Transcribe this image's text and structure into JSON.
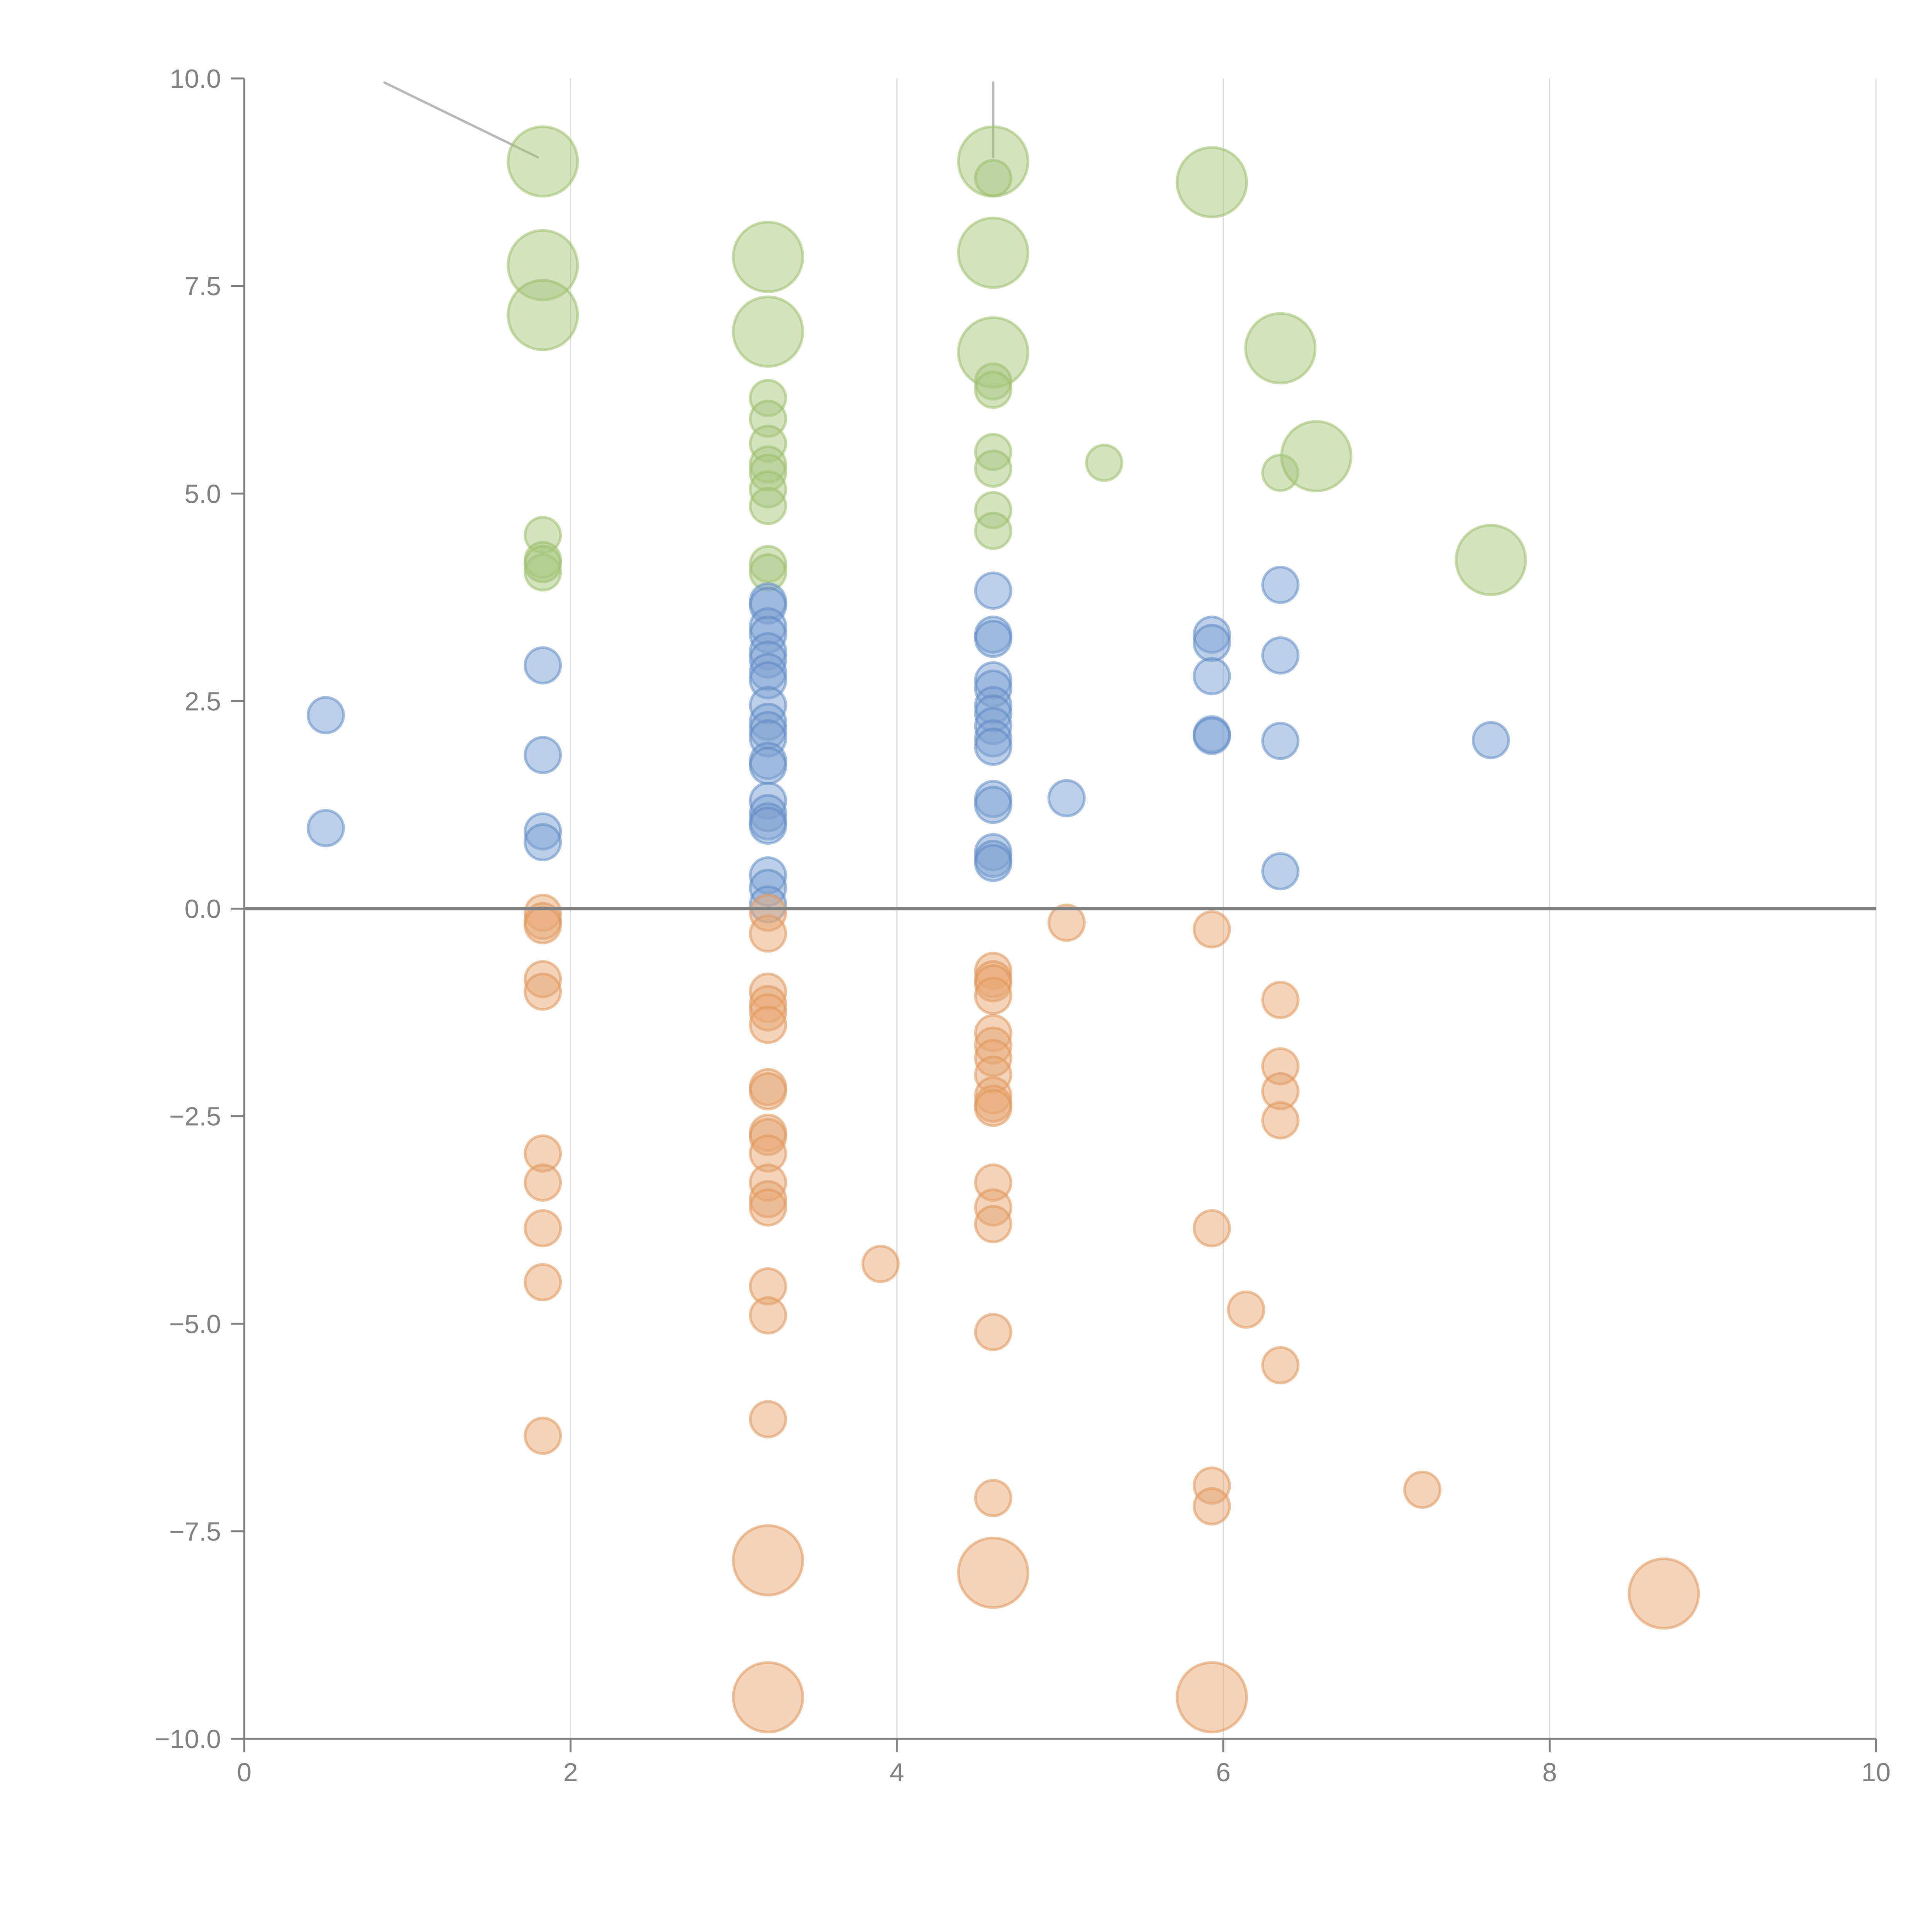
{
  "chart_data": {
    "type": "scatter",
    "subtype": "bubble",
    "title": "",
    "xlabel": "",
    "ylabel": "",
    "xlim": [
      0,
      10
    ],
    "ylim": [
      -10,
      10
    ],
    "x_ticks": [
      "0",
      "2",
      "4",
      "6",
      "8",
      "10"
    ],
    "y_ticks": [
      "10.0",
      "7.5",
      "5.0",
      "2.5",
      "0.0",
      "−2.5",
      "−5.0",
      "−7.5",
      "−10.0"
    ],
    "x_tick_values": [
      0,
      2,
      4,
      6,
      8,
      10
    ],
    "y_tick_values": [
      10,
      7.5,
      5,
      2.5,
      0,
      -2.5,
      -5,
      -7.5,
      -10
    ],
    "grid": "vertical",
    "zero_line": true,
    "legend": "none",
    "colors": {
      "positive_high": {
        "fill": "#a9c77f",
        "stroke": "#9bbf6a"
      },
      "positive_low": {
        "fill": "#7ea1d2",
        "stroke": "#5f8ac6"
      },
      "negative": {
        "fill": "#e8a874",
        "stroke": "#e0955a"
      }
    },
    "series": [
      {
        "name": "green",
        "color_key": "positive_high",
        "points": [
          {
            "x": 1.83,
            "y": 9.0,
            "size": 2
          },
          {
            "x": 1.83,
            "y": 7.75,
            "size": 2
          },
          {
            "x": 1.83,
            "y": 7.15,
            "size": 2
          },
          {
            "x": 1.83,
            "y": 4.5,
            "size": 1
          },
          {
            "x": 1.83,
            "y": 4.2,
            "size": 1
          },
          {
            "x": 1.83,
            "y": 4.05,
            "size": 1
          },
          {
            "x": 1.83,
            "y": 4.15,
            "size": 1
          },
          {
            "x": 3.21,
            "y": 7.85,
            "size": 2
          },
          {
            "x": 3.21,
            "y": 6.95,
            "size": 2
          },
          {
            "x": 3.21,
            "y": 6.15,
            "size": 1
          },
          {
            "x": 3.21,
            "y": 5.9,
            "size": 1
          },
          {
            "x": 3.21,
            "y": 5.6,
            "size": 1
          },
          {
            "x": 3.21,
            "y": 5.35,
            "size": 1
          },
          {
            "x": 3.21,
            "y": 5.25,
            "size": 1
          },
          {
            "x": 3.21,
            "y": 5.05,
            "size": 1
          },
          {
            "x": 3.21,
            "y": 4.85,
            "size": 1
          },
          {
            "x": 3.21,
            "y": 4.15,
            "size": 1
          },
          {
            "x": 3.21,
            "y": 4.05,
            "size": 1
          },
          {
            "x": 4.59,
            "y": 9.0,
            "size": 2
          },
          {
            "x": 4.59,
            "y": 8.8,
            "size": 1
          },
          {
            "x": 4.59,
            "y": 7.9,
            "size": 2
          },
          {
            "x": 4.59,
            "y": 6.7,
            "size": 2
          },
          {
            "x": 4.59,
            "y": 6.35,
            "size": 1
          },
          {
            "x": 4.59,
            "y": 6.25,
            "size": 1
          },
          {
            "x": 4.59,
            "y": 5.5,
            "size": 1
          },
          {
            "x": 4.59,
            "y": 5.3,
            "size": 1
          },
          {
            "x": 4.59,
            "y": 4.8,
            "size": 1
          },
          {
            "x": 4.59,
            "y": 4.55,
            "size": 1
          },
          {
            "x": 5.27,
            "y": 5.37,
            "size": 1
          },
          {
            "x": 5.93,
            "y": 8.75,
            "size": 2
          },
          {
            "x": 6.35,
            "y": 6.75,
            "size": 2
          },
          {
            "x": 6.35,
            "y": 5.25,
            "size": 1
          },
          {
            "x": 6.57,
            "y": 5.45,
            "size": 2
          },
          {
            "x": 7.64,
            "y": 4.2,
            "size": 2
          }
        ]
      },
      {
        "name": "blue",
        "color_key": "positive_low",
        "points": [
          {
            "x": 0.5,
            "y": 2.33,
            "size": 1
          },
          {
            "x": 0.5,
            "y": 0.97,
            "size": 1
          },
          {
            "x": 1.83,
            "y": 2.93,
            "size": 1
          },
          {
            "x": 1.83,
            "y": 1.85,
            "size": 1
          },
          {
            "x": 1.83,
            "y": 0.93,
            "size": 1
          },
          {
            "x": 1.83,
            "y": 0.8,
            "size": 1
          },
          {
            "x": 3.21,
            "y": 3.7,
            "size": 1
          },
          {
            "x": 3.21,
            "y": 3.65,
            "size": 1
          },
          {
            "x": 3.21,
            "y": 3.4,
            "size": 1
          },
          {
            "x": 3.21,
            "y": 3.3,
            "size": 1
          },
          {
            "x": 3.21,
            "y": 3.1,
            "size": 1
          },
          {
            "x": 3.21,
            "y": 3.0,
            "size": 1
          },
          {
            "x": 3.21,
            "y": 2.85,
            "size": 1
          },
          {
            "x": 3.21,
            "y": 2.75,
            "size": 1
          },
          {
            "x": 3.21,
            "y": 2.45,
            "size": 1
          },
          {
            "x": 3.21,
            "y": 2.25,
            "size": 1
          },
          {
            "x": 3.21,
            "y": 2.15,
            "size": 1
          },
          {
            "x": 3.21,
            "y": 2.05,
            "size": 1
          },
          {
            "x": 3.21,
            "y": 1.78,
            "size": 1
          },
          {
            "x": 3.21,
            "y": 1.72,
            "size": 1
          },
          {
            "x": 3.21,
            "y": 1.3,
            "size": 1
          },
          {
            "x": 3.21,
            "y": 1.15,
            "size": 1
          },
          {
            "x": 3.21,
            "y": 1.05,
            "size": 1
          },
          {
            "x": 3.21,
            "y": 1.0,
            "size": 1
          },
          {
            "x": 3.21,
            "y": 0.4,
            "size": 1
          },
          {
            "x": 3.21,
            "y": 0.25,
            "size": 1
          },
          {
            "x": 3.21,
            "y": 0.05,
            "size": 1
          },
          {
            "x": 4.59,
            "y": 3.83,
            "size": 1
          },
          {
            "x": 4.59,
            "y": 3.3,
            "size": 1
          },
          {
            "x": 4.59,
            "y": 3.25,
            "size": 1
          },
          {
            "x": 4.59,
            "y": 2.75,
            "size": 1
          },
          {
            "x": 4.59,
            "y": 2.65,
            "size": 1
          },
          {
            "x": 4.59,
            "y": 2.45,
            "size": 1
          },
          {
            "x": 4.59,
            "y": 2.35,
            "size": 1
          },
          {
            "x": 4.59,
            "y": 2.2,
            "size": 1
          },
          {
            "x": 4.59,
            "y": 2.05,
            "size": 1
          },
          {
            "x": 4.59,
            "y": 1.95,
            "size": 1
          },
          {
            "x": 4.59,
            "y": 1.32,
            "size": 1
          },
          {
            "x": 4.59,
            "y": 1.25,
            "size": 1
          },
          {
            "x": 4.59,
            "y": 0.68,
            "size": 1
          },
          {
            "x": 4.59,
            "y": 0.6,
            "size": 1
          },
          {
            "x": 4.59,
            "y": 0.55,
            "size": 1
          },
          {
            "x": 5.04,
            "y": 1.33,
            "size": 1
          },
          {
            "x": 5.93,
            "y": 3.3,
            "size": 1
          },
          {
            "x": 5.93,
            "y": 3.2,
            "size": 1
          },
          {
            "x": 5.93,
            "y": 2.8,
            "size": 1
          },
          {
            "x": 5.93,
            "y": 2.1,
            "size": 1
          },
          {
            "x": 5.93,
            "y": 2.08,
            "size": 1
          },
          {
            "x": 6.35,
            "y": 3.9,
            "size": 1
          },
          {
            "x": 6.35,
            "y": 3.05,
            "size": 1
          },
          {
            "x": 6.35,
            "y": 2.02,
            "size": 1
          },
          {
            "x": 6.35,
            "y": 0.45,
            "size": 1
          },
          {
            "x": 7.64,
            "y": 2.03,
            "size": 1
          }
        ]
      },
      {
        "name": "orange",
        "color_key": "negative",
        "points": [
          {
            "x": 1.83,
            "y": -0.05,
            "size": 1
          },
          {
            "x": 1.83,
            "y": -0.15,
            "size": 1
          },
          {
            "x": 1.83,
            "y": -0.2,
            "size": 1
          },
          {
            "x": 1.83,
            "y": -0.85,
            "size": 1
          },
          {
            "x": 1.83,
            "y": -1.0,
            "size": 1
          },
          {
            "x": 1.83,
            "y": -2.95,
            "size": 1
          },
          {
            "x": 1.83,
            "y": -3.3,
            "size": 1
          },
          {
            "x": 1.83,
            "y": -3.85,
            "size": 1
          },
          {
            "x": 1.83,
            "y": -4.5,
            "size": 1
          },
          {
            "x": 1.83,
            "y": -6.35,
            "size": 1
          },
          {
            "x": 3.21,
            "y": -0.05,
            "size": 1
          },
          {
            "x": 3.21,
            "y": -0.3,
            "size": 1
          },
          {
            "x": 3.21,
            "y": -1.0,
            "size": 1
          },
          {
            "x": 3.21,
            "y": -1.15,
            "size": 1
          },
          {
            "x": 3.21,
            "y": -1.25,
            "size": 1
          },
          {
            "x": 3.21,
            "y": -1.4,
            "size": 1
          },
          {
            "x": 3.21,
            "y": -2.15,
            "size": 1
          },
          {
            "x": 3.21,
            "y": -2.2,
            "size": 1
          },
          {
            "x": 3.21,
            "y": -2.7,
            "size": 1
          },
          {
            "x": 3.21,
            "y": -2.75,
            "size": 1
          },
          {
            "x": 3.21,
            "y": -2.95,
            "size": 1
          },
          {
            "x": 3.21,
            "y": -3.3,
            "size": 1
          },
          {
            "x": 3.21,
            "y": -3.5,
            "size": 1
          },
          {
            "x": 3.21,
            "y": -3.6,
            "size": 1
          },
          {
            "x": 3.21,
            "y": -4.55,
            "size": 1
          },
          {
            "x": 3.21,
            "y": -4.9,
            "size": 1
          },
          {
            "x": 3.21,
            "y": -6.15,
            "size": 1
          },
          {
            "x": 3.21,
            "y": -7.85,
            "size": 2
          },
          {
            "x": 3.21,
            "y": -9.5,
            "size": 2
          },
          {
            "x": 3.9,
            "y": -4.28,
            "size": 1
          },
          {
            "x": 4.59,
            "y": -0.75,
            "size": 1
          },
          {
            "x": 4.59,
            "y": -0.85,
            "size": 1
          },
          {
            "x": 4.59,
            "y": -0.9,
            "size": 1
          },
          {
            "x": 4.59,
            "y": -1.05,
            "size": 1
          },
          {
            "x": 4.59,
            "y": -1.5,
            "size": 1
          },
          {
            "x": 4.59,
            "y": -1.65,
            "size": 1
          },
          {
            "x": 4.59,
            "y": -1.8,
            "size": 1
          },
          {
            "x": 4.59,
            "y": -2.0,
            "size": 1
          },
          {
            "x": 4.59,
            "y": -2.25,
            "size": 1
          },
          {
            "x": 4.59,
            "y": -2.35,
            "size": 1
          },
          {
            "x": 4.59,
            "y": -2.4,
            "size": 1
          },
          {
            "x": 4.59,
            "y": -3.3,
            "size": 1
          },
          {
            "x": 4.59,
            "y": -3.6,
            "size": 1
          },
          {
            "x": 4.59,
            "y": -3.8,
            "size": 1
          },
          {
            "x": 4.59,
            "y": -5.1,
            "size": 1
          },
          {
            "x": 4.59,
            "y": -7.1,
            "size": 1
          },
          {
            "x": 4.59,
            "y": -8.0,
            "size": 2
          },
          {
            "x": 5.04,
            "y": -0.17,
            "size": 1
          },
          {
            "x": 5.93,
            "y": -0.25,
            "size": 1
          },
          {
            "x": 5.93,
            "y": -3.85,
            "size": 1
          },
          {
            "x": 5.93,
            "y": -6.95,
            "size": 1
          },
          {
            "x": 5.93,
            "y": -7.2,
            "size": 1
          },
          {
            "x": 5.93,
            "y": -9.5,
            "size": 2
          },
          {
            "x": 6.14,
            "y": -4.83,
            "size": 1
          },
          {
            "x": 6.35,
            "y": -1.1,
            "size": 1
          },
          {
            "x": 6.35,
            "y": -1.9,
            "size": 1
          },
          {
            "x": 6.35,
            "y": -2.2,
            "size": 1
          },
          {
            "x": 6.35,
            "y": -2.55,
            "size": 1
          },
          {
            "x": 6.35,
            "y": -5.5,
            "size": 1
          },
          {
            "x": 7.22,
            "y": -7.0,
            "size": 1
          },
          {
            "x": 8.7,
            "y": -8.25,
            "size": 2
          }
        ]
      }
    ],
    "annotation_leaders": [
      {
        "from": [
          0.86,
          9.95
        ],
        "to": [
          1.8,
          9.05
        ]
      },
      {
        "from": [
          4.59,
          9.95
        ],
        "to": [
          4.59,
          9.05
        ]
      }
    ]
  }
}
